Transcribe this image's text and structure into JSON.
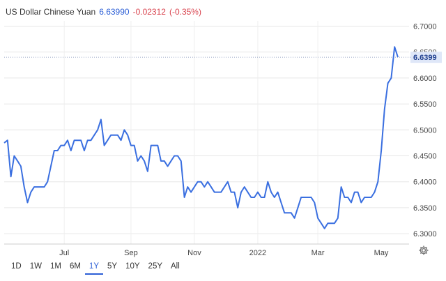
{
  "header": {
    "symbol": "US Dollar Chinese Yuan",
    "price": "6.63990",
    "change": "-0.02312",
    "change_pct": "(-0.35%)"
  },
  "price_tag": "6.6399",
  "range_buttons": [
    "1D",
    "1W",
    "1M",
    "6M",
    "1Y",
    "5Y",
    "10Y",
    "25Y",
    "All"
  ],
  "active_range": "1Y",
  "colors": {
    "line": "#3a6fe0",
    "price_up": "#2c5fd6",
    "price_down": "#d9434e",
    "grid": "#e6e6e6",
    "tag_bg": "#dfe7f8"
  },
  "icons": {
    "settings": "gear-icon"
  },
  "chart_data": {
    "type": "line",
    "title": "",
    "xlabel": "",
    "ylabel": "",
    "grid": true,
    "ylim": [
      6.28,
      6.71
    ],
    "y_ticks": [
      "6.7000",
      "6.6500",
      "6.6000",
      "6.5500",
      "6.5000",
      "6.4500",
      "6.4000",
      "6.3500",
      "6.3000"
    ],
    "y_tick_values": [
      6.7,
      6.65,
      6.6,
      6.55,
      6.5,
      6.45,
      6.4,
      6.35,
      6.3
    ],
    "x_ticks": [
      "Jul",
      "Sep",
      "Nov",
      "2022",
      "Mar",
      "May"
    ],
    "x_tick_index": [
      18,
      38,
      57,
      76,
      94,
      113
    ],
    "last_value": 6.6399,
    "series": [
      {
        "values": [
          6.475,
          6.48,
          6.41,
          6.45,
          6.44,
          6.43,
          6.39,
          6.36,
          6.38,
          6.39,
          6.39,
          6.39,
          6.39,
          6.4,
          6.43,
          6.46,
          6.46,
          6.47,
          6.47,
          6.48,
          6.46,
          6.48,
          6.48,
          6.48,
          6.46,
          6.48,
          6.48,
          6.49,
          6.5,
          6.52,
          6.47,
          6.48,
          6.49,
          6.49,
          6.49,
          6.48,
          6.5,
          6.49,
          6.47,
          6.47,
          6.44,
          6.45,
          6.44,
          6.42,
          6.47,
          6.47,
          6.47,
          6.44,
          6.44,
          6.43,
          6.44,
          6.45,
          6.45,
          6.44,
          6.37,
          6.39,
          6.38,
          6.39,
          6.4,
          6.4,
          6.39,
          6.4,
          6.39,
          6.38,
          6.38,
          6.38,
          6.39,
          6.4,
          6.38,
          6.38,
          6.35,
          6.38,
          6.39,
          6.38,
          6.37,
          6.37,
          6.38,
          6.37,
          6.37,
          6.4,
          6.38,
          6.37,
          6.38,
          6.36,
          6.34,
          6.34,
          6.34,
          6.33,
          6.35,
          6.37,
          6.37,
          6.37,
          6.37,
          6.36,
          6.33,
          6.32,
          6.31,
          6.32,
          6.32,
          6.32,
          6.33,
          6.39,
          6.37,
          6.37,
          6.36,
          6.38,
          6.38,
          6.36,
          6.37,
          6.37,
          6.37,
          6.38,
          6.4,
          6.46,
          6.54,
          6.59,
          6.6,
          6.66,
          6.64
        ]
      }
    ]
  }
}
